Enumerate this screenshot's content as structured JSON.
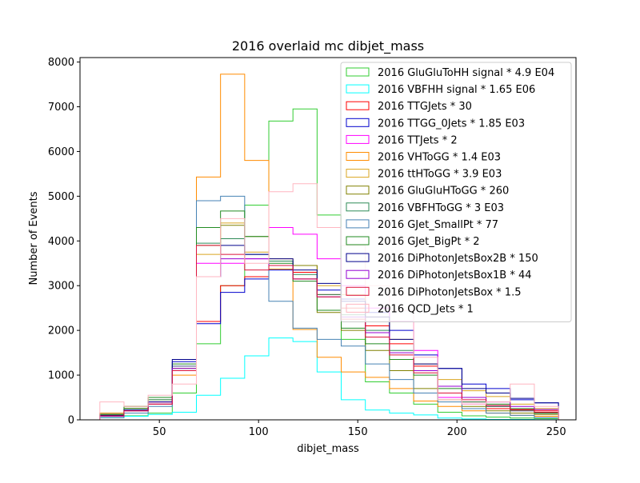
{
  "chart_data": {
    "type": "step-histogram",
    "title": "2016 overlaid mc dibjet_mass",
    "xlabel": "dibjet_mass",
    "ylabel": "Number of Events",
    "xlim": [
      10,
      260
    ],
    "ylim": [
      0,
      8100
    ],
    "xticks": [
      50,
      100,
      150,
      200,
      250
    ],
    "yticks": [
      0,
      1000,
      2000,
      3000,
      4000,
      5000,
      6000,
      7000,
      8000
    ],
    "bin_edges": [
      20,
      32.17,
      44.33,
      56.5,
      68.67,
      80.83,
      93,
      105.17,
      117.33,
      129.5,
      141.67,
      153.83,
      166,
      178.17,
      190.33,
      202.5,
      214.67,
      226.83,
      239,
      251.17
    ],
    "legend_position": "top-right",
    "series": [
      {
        "name": "2016 GluGluToHH signal * 4.9 E04",
        "color": "#32cd32",
        "values": [
          50,
          90,
          150,
          600,
          1700,
          3000,
          4800,
          6680,
          6950,
          4580,
          1800,
          850,
          600,
          350,
          170,
          90,
          60,
          40,
          30
        ]
      },
      {
        "name": "2016 VBFHH signal * 1.65 E06",
        "color": "#00ffff",
        "values": [
          50,
          80,
          120,
          170,
          550,
          930,
          1430,
          1830,
          1750,
          1070,
          450,
          220,
          150,
          110,
          40,
          20,
          10,
          10,
          5
        ]
      },
      {
        "name": "2016 TTGJets * 30",
        "color": "#ff0000",
        "values": [
          150,
          250,
          400,
          1200,
          2200,
          3000,
          3200,
          3450,
          3300,
          2800,
          2500,
          2100,
          1700,
          1200,
          600,
          400,
          250,
          220,
          200
        ]
      },
      {
        "name": "2016 TTGG_0Jets * 1.85 E03",
        "color": "#0000cd",
        "values": [
          80,
          200,
          350,
          1300,
          2150,
          2850,
          3150,
          3350,
          3150,
          2900,
          2700,
          2400,
          2000,
          1450,
          1150,
          800,
          700,
          450,
          380
        ]
      },
      {
        "name": "2016 TTJets * 2",
        "color": "#ff00ff",
        "values": [
          100,
          250,
          400,
          1100,
          3500,
          3500,
          3600,
          4300,
          4150,
          3600,
          3000,
          2500,
          2200,
          1550,
          500,
          350,
          300,
          200,
          150
        ]
      },
      {
        "name": "2016 VHToGG * 1.4 E03",
        "color": "#ff8c00",
        "values": [
          100,
          200,
          350,
          1000,
          5430,
          7730,
          5800,
          3370,
          2020,
          1400,
          1070,
          950,
          700,
          420,
          300,
          200,
          150,
          100,
          80
        ]
      },
      {
        "name": "2016 ttHToGG * 3.9 E03",
        "color": "#daa520",
        "values": [
          150,
          300,
          500,
          1100,
          3700,
          4400,
          3750,
          3600,
          3450,
          3000,
          2800,
          2300,
          1800,
          1250,
          900,
          650,
          520,
          350,
          250
        ]
      },
      {
        "name": "2016 GluGluHToGG * 260",
        "color": "#808000",
        "values": [
          120,
          260,
          450,
          1150,
          3900,
          4350,
          4100,
          3550,
          3450,
          2400,
          2000,
          1550,
          1100,
          700,
          450,
          300,
          200,
          150,
          120
        ]
      },
      {
        "name": "2016 VBFHToGG * 3 E03",
        "color": "#2e8b57",
        "values": [
          120,
          250,
          450,
          1100,
          3950,
          4050,
          3700,
          3550,
          3250,
          2800,
          2350,
          2000,
          1550,
          1100,
          600,
          400,
          300,
          200,
          150
        ]
      },
      {
        "name": "2016 GJet_SmallPt * 77",
        "color": "#4682b4",
        "values": [
          50,
          150,
          300,
          1200,
          4900,
          5000,
          3700,
          2650,
          2050,
          1800,
          1650,
          1250,
          900,
          600,
          400,
          250,
          150,
          100,
          50
        ]
      },
      {
        "name": "2016 GJet_BigPt * 2",
        "color": "#228b22",
        "values": [
          120,
          300,
          500,
          1250,
          4300,
          4670,
          4100,
          3500,
          3100,
          2450,
          2050,
          1700,
          1350,
          1000,
          700,
          500,
          350,
          250,
          150
        ]
      },
      {
        "name": "2016 DiPhotonJetsBox2B * 150",
        "color": "#00008b",
        "values": [
          100,
          220,
          400,
          1350,
          3200,
          3900,
          3700,
          3600,
          3350,
          3050,
          2650,
          2300,
          1800,
          1250,
          1150,
          700,
          600,
          480,
          380
        ]
      },
      {
        "name": "2016 DiPhotonJetsBox1B * 44",
        "color": "#9400d3",
        "values": [
          80,
          200,
          350,
          1150,
          3200,
          3600,
          3600,
          3450,
          3150,
          2750,
          2300,
          1950,
          1500,
          1100,
          750,
          500,
          400,
          300,
          230
        ]
      },
      {
        "name": "2016 DiPhotonJetsBox * 1.5",
        "color": "#dc143c",
        "values": [
          90,
          200,
          350,
          1100,
          3900,
          3700,
          3350,
          3450,
          3150,
          2750,
          2250,
          1850,
          1450,
          1050,
          600,
          450,
          320,
          230,
          170
        ]
      },
      {
        "name": "2016 QCD_Jets * 1",
        "color": "#ffb6c1",
        "values": [
          400,
          300,
          550,
          800,
          3200,
          4500,
          3500,
          5100,
          5280,
          4300,
          3900,
          3000,
          2450,
          1400,
          450,
          350,
          400,
          800,
          300
        ]
      }
    ]
  }
}
